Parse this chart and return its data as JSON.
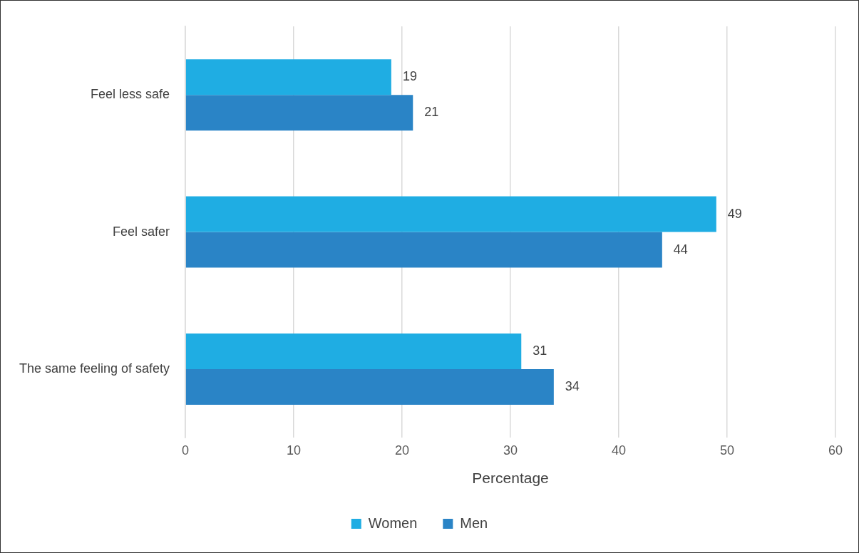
{
  "chart_data": {
    "type": "bar",
    "orientation": "horizontal",
    "xlabel": "Percentage",
    "categories": [
      "Feel less safe",
      "Feel safer",
      "The same feeling of safety"
    ],
    "series": [
      {
        "name": "Women",
        "color": "#1fade3",
        "values": [
          19,
          49,
          31
        ]
      },
      {
        "name": "Men",
        "color": "#2a84c6",
        "values": [
          21,
          44,
          34
        ]
      }
    ],
    "xlim": [
      0,
      60
    ],
    "xticks": [
      0,
      10,
      20,
      30,
      40,
      50,
      60
    ],
    "grid": "x",
    "legend": "bottom",
    "data_labels": true
  }
}
